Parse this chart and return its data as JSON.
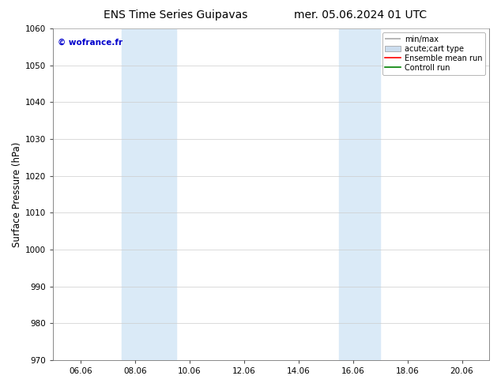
{
  "title_left": "ENS Time Series Guipavas",
  "title_right": "mer. 05.06.2024 01 UTC",
  "ylabel": "Surface Pressure (hPa)",
  "ylim": [
    970,
    1060
  ],
  "yticks": [
    970,
    980,
    990,
    1000,
    1010,
    1020,
    1030,
    1040,
    1050,
    1060
  ],
  "xtick_labels": [
    "06.06",
    "08.06",
    "10.06",
    "12.06",
    "14.06",
    "16.06",
    "18.06",
    "20.06"
  ],
  "xtick_positions": [
    0,
    2,
    4,
    6,
    8,
    10,
    12,
    14
  ],
  "xmin": -1.0,
  "xmax": 15.0,
  "shaded_regions": [
    {
      "xstart": 1.5,
      "xend": 3.5
    },
    {
      "xstart": 9.5,
      "xend": 11.0
    }
  ],
  "shade_color": "#daeaf7",
  "background_color": "#ffffff",
  "watermark_text": "© wofrance.fr",
  "watermark_color": "#0000cc",
  "legend_entries": [
    {
      "label": "min/max",
      "color": "#aaaaaa",
      "lw": 1.2,
      "style": "minmax"
    },
    {
      "label": "acute;cart type",
      "color": "#ccddee",
      "lw": 6,
      "style": "thick"
    },
    {
      "label": "Ensemble mean run",
      "color": "#ff0000",
      "lw": 1.2,
      "style": "line"
    },
    {
      "label": "Controll run",
      "color": "#008000",
      "lw": 1.2,
      "style": "line"
    }
  ],
  "grid_color": "#cccccc",
  "title_fontsize": 10,
  "tick_fontsize": 7.5,
  "ylabel_fontsize": 8.5,
  "watermark_fontsize": 7.5,
  "legend_fontsize": 7
}
